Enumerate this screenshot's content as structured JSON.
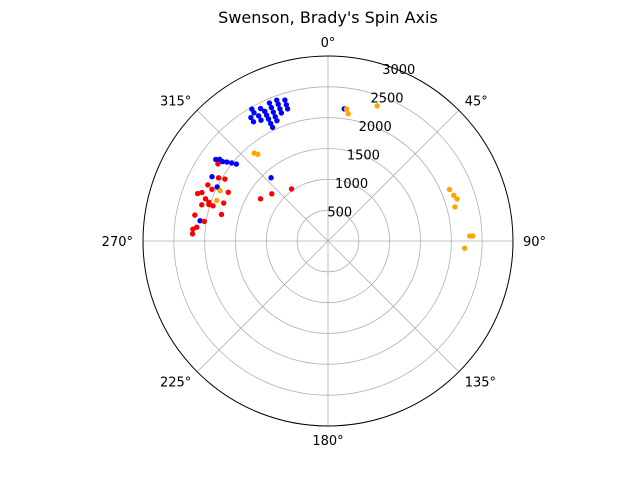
{
  "chart_data": {
    "type": "scatter",
    "projection": "polar",
    "title": "Swenson, Brady's Spin Axis",
    "theta_direction": "clockwise",
    "theta_zero": "top",
    "angle_ticks": [
      "0°",
      "45°",
      "90°",
      "135°",
      "180°",
      "225°",
      "270°",
      "315°"
    ],
    "radial_ticks": [
      "500",
      "1000",
      "1500",
      "2000",
      "2500",
      "3000"
    ],
    "rlim": [
      0,
      3000
    ],
    "grid": true,
    "series": [
      {
        "color": "#0000ff",
        "points": [
          [
            334,
            2050
          ],
          [
            334,
            2120
          ],
          [
            334,
            2200
          ],
          [
            334,
            2270
          ],
          [
            334,
            2340
          ],
          [
            333,
            2410
          ],
          [
            337,
            2120
          ],
          [
            337,
            2190
          ],
          [
            337,
            2270
          ],
          [
            337,
            2350
          ],
          [
            337,
            2430
          ],
          [
            331,
            2240
          ],
          [
            331,
            2320
          ],
          [
            330,
            2400
          ],
          [
            330,
            2470
          ],
          [
            340,
            2210
          ],
          [
            340,
            2280
          ],
          [
            340,
            2360
          ],
          [
            340,
            2430
          ],
          [
            343,
            2240
          ],
          [
            343,
            2310
          ],
          [
            343,
            2390
          ],
          [
            328,
            2280
          ],
          [
            328,
            2360
          ],
          [
            310,
            1940
          ],
          [
            309,
            2010
          ],
          [
            308,
            2080
          ],
          [
            307,
            2140
          ],
          [
            307,
            2200
          ],
          [
            306,
            2250
          ],
          [
            299,
            2150
          ],
          [
            296,
            2000
          ],
          [
            318,
            1380
          ],
          [
            279,
            2100
          ],
          [
            7,
            2160
          ]
        ]
      },
      {
        "color": "#ff0000",
        "points": [
          [
            287,
            1950
          ],
          [
            288,
            2030
          ],
          [
            289,
            2100
          ],
          [
            291,
            2190
          ],
          [
            290,
            2250
          ],
          [
            286,
            2130
          ],
          [
            287,
            2020
          ],
          [
            290,
            1800
          ],
          [
            284,
            1780
          ],
          [
            281,
            2200
          ],
          [
            276,
            2140
          ],
          [
            275,
            2200
          ],
          [
            273,
            2200
          ],
          [
            279,
            2030
          ],
          [
            296,
            1800
          ],
          [
            300,
            2050
          ],
          [
            301,
            1950
          ],
          [
            294,
            2060
          ],
          [
            325,
            1030
          ],
          [
            310,
            1190
          ],
          [
            302,
            1290
          ],
          [
            305,
            2180
          ],
          [
            295,
            2150
          ]
        ]
      },
      {
        "color": "#ffa500",
        "points": [
          [
            8,
            2160
          ],
          [
            9,
            2090
          ],
          [
            20,
            2330
          ],
          [
            67,
            2140
          ],
          [
            70,
            2170
          ],
          [
            72,
            2200
          ],
          [
            75,
            2130
          ],
          [
            88,
            2300
          ],
          [
            88,
            2350
          ],
          [
            93,
            2220
          ],
          [
            290,
            1920
          ],
          [
            295,
            1930
          ],
          [
            320,
            1860
          ],
          [
            321,
            1810
          ]
        ]
      }
    ]
  }
}
